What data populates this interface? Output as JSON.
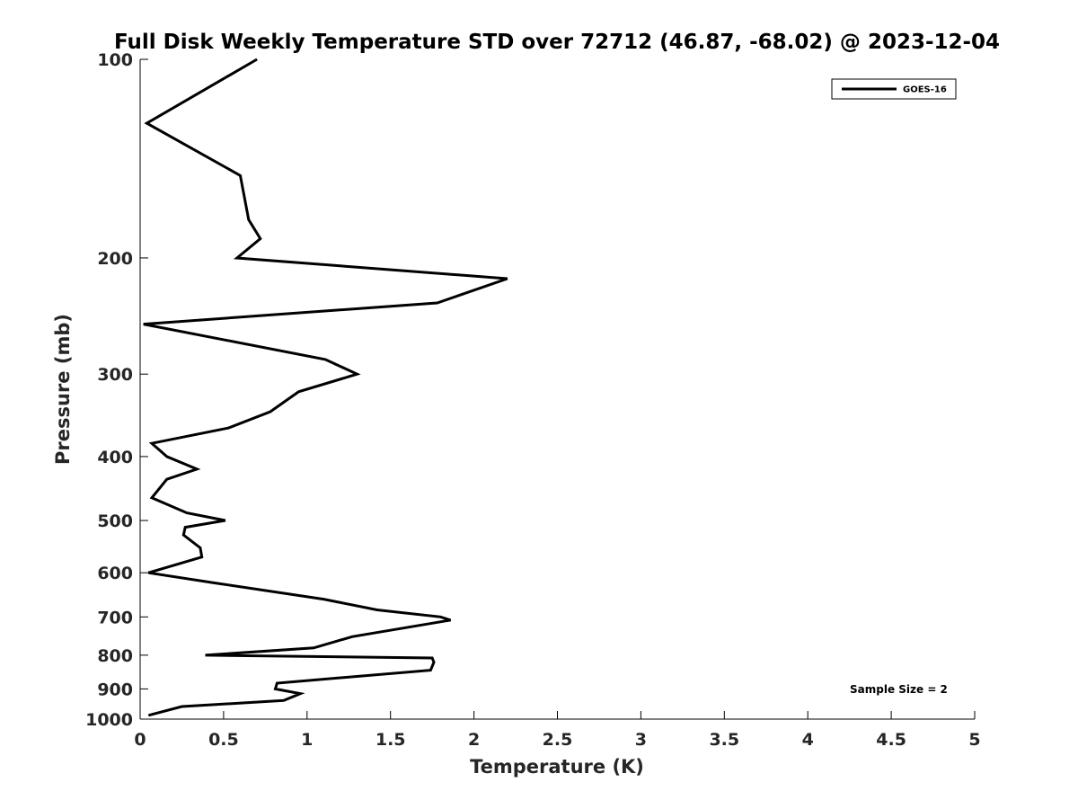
{
  "chart_data": {
    "type": "line",
    "title": "Full Disk Weekly Temperature STD over 72712 (46.87, -68.02) @ 2023-12-04",
    "xlabel": "Temperature (K)",
    "ylabel": "Pressure (mb)",
    "xlim": [
      0,
      5
    ],
    "ylim": [
      1000,
      100
    ],
    "y_scale": "log",
    "y_reversed": true,
    "grid": false,
    "legend_position": "top-right",
    "x_ticks": [
      "0",
      "0.5",
      "1",
      "1.5",
      "2",
      "2.5",
      "3",
      "3.5",
      "4",
      "4.5",
      "5"
    ],
    "y_ticks": [
      "100",
      "200",
      "300",
      "400",
      "500",
      "600",
      "700",
      "800",
      "900",
      "1000"
    ],
    "annotation": "Sample Size = 2",
    "series": [
      {
        "name": "GOES-16",
        "color": "#000000",
        "points": [
          [
            0.7,
            100
          ],
          [
            0.04,
            125
          ],
          [
            0.6,
            150
          ],
          [
            0.65,
            175
          ],
          [
            0.72,
            187
          ],
          [
            0.58,
            200
          ],
          [
            2.2,
            215
          ],
          [
            1.78,
            234
          ],
          [
            0.02,
            252
          ],
          [
            1.11,
            285
          ],
          [
            1.3,
            300
          ],
          [
            0.95,
            319
          ],
          [
            0.78,
            342
          ],
          [
            0.53,
            362
          ],
          [
            0.07,
            382
          ],
          [
            0.16,
            400
          ],
          [
            0.34,
            418
          ],
          [
            0.16,
            433
          ],
          [
            0.07,
            462
          ],
          [
            0.28,
            487
          ],
          [
            0.51,
            500
          ],
          [
            0.27,
            512
          ],
          [
            0.26,
            526
          ],
          [
            0.36,
            550
          ],
          [
            0.37,
            568
          ],
          [
            0.05,
            600
          ],
          [
            0.45,
            622
          ],
          [
            1.1,
            658
          ],
          [
            1.42,
            683
          ],
          [
            1.8,
            700
          ],
          [
            1.86,
            708
          ],
          [
            1.83,
            710
          ],
          [
            1.27,
            750
          ],
          [
            1.04,
            780
          ],
          [
            0.39,
            800
          ],
          [
            1.75,
            808
          ],
          [
            1.76,
            820
          ],
          [
            1.74,
            843
          ],
          [
            0.82,
            882
          ],
          [
            0.81,
            900
          ],
          [
            0.96,
            915
          ],
          [
            0.86,
            937
          ],
          [
            0.25,
            957
          ],
          [
            0.05,
            987
          ]
        ]
      }
    ]
  }
}
